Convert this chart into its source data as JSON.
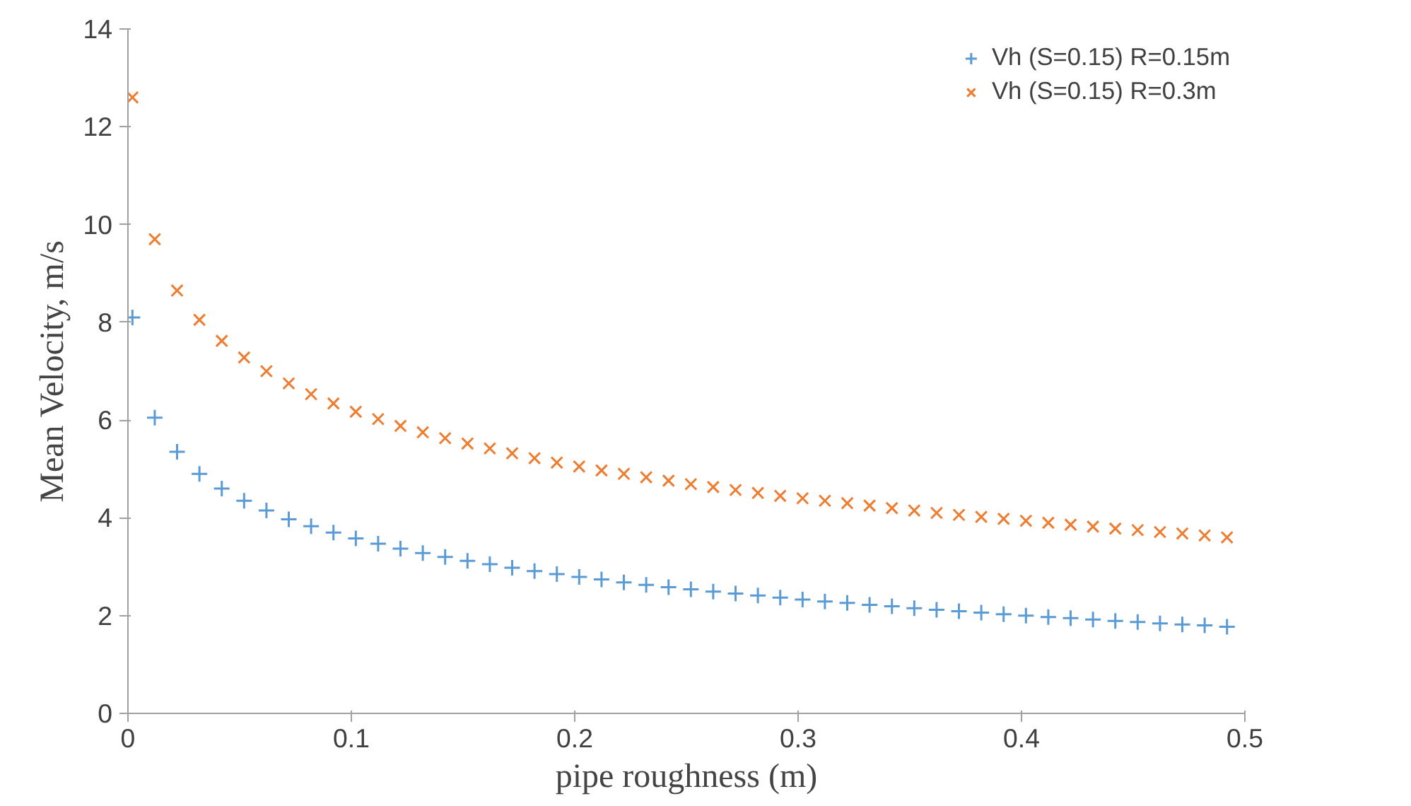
{
  "chart_data": {
    "type": "scatter",
    "xlabel": "pipe roughness (m)",
    "ylabel": "Mean Velocity, m/s",
    "x": [
      0.002,
      0.012,
      0.022,
      0.032,
      0.042,
      0.052,
      0.062,
      0.072,
      0.082,
      0.092,
      0.102,
      0.112,
      0.122,
      0.132,
      0.142,
      0.152,
      0.162,
      0.172,
      0.182,
      0.192,
      0.202,
      0.212,
      0.222,
      0.232,
      0.242,
      0.252,
      0.262,
      0.272,
      0.282,
      0.292,
      0.302,
      0.312,
      0.322,
      0.332,
      0.342,
      0.352,
      0.362,
      0.372,
      0.382,
      0.392,
      0.402,
      0.412,
      0.422,
      0.432,
      0.442,
      0.452,
      0.462,
      0.472,
      0.482,
      0.492
    ],
    "series": [
      {
        "name": "Vh (S=0.15) R=0.15m",
        "color": "#5b9bd5",
        "marker": "cross",
        "values": [
          8.1,
          6.05,
          5.35,
          4.9,
          4.6,
          4.35,
          4.15,
          3.97,
          3.83,
          3.7,
          3.58,
          3.47,
          3.37,
          3.28,
          3.2,
          3.12,
          3.05,
          2.98,
          2.91,
          2.85,
          2.79,
          2.74,
          2.68,
          2.63,
          2.58,
          2.54,
          2.49,
          2.45,
          2.41,
          2.37,
          2.33,
          2.29,
          2.26,
          2.22,
          2.19,
          2.15,
          2.12,
          2.09,
          2.06,
          2.03,
          2.0,
          1.97,
          1.95,
          1.92,
          1.89,
          1.87,
          1.84,
          1.82,
          1.8,
          1.77
        ]
      },
      {
        "name": "Vh (S=0.15) R=0.3m",
        "color": "#ed7d31",
        "marker": "x",
        "values": [
          12.6,
          9.7,
          8.65,
          8.05,
          7.62,
          7.28,
          7.0,
          6.75,
          6.53,
          6.34,
          6.17,
          6.02,
          5.88,
          5.75,
          5.63,
          5.52,
          5.42,
          5.32,
          5.22,
          5.13,
          5.05,
          4.97,
          4.9,
          4.83,
          4.76,
          4.69,
          4.63,
          4.57,
          4.51,
          4.45,
          4.4,
          4.35,
          4.3,
          4.25,
          4.2,
          4.15,
          4.1,
          4.06,
          4.02,
          3.98,
          3.94,
          3.9,
          3.86,
          3.82,
          3.78,
          3.75,
          3.71,
          3.68,
          3.64,
          3.6
        ]
      }
    ],
    "xlim": [
      0,
      0.5
    ],
    "xticks": [
      0,
      0.1,
      0.2,
      0.3,
      0.4,
      0.5
    ],
    "ylim": [
      0,
      14
    ],
    "yticks": [
      0,
      2,
      4,
      6,
      8,
      10,
      12,
      14
    ],
    "grid": false,
    "legend": "top right"
  }
}
